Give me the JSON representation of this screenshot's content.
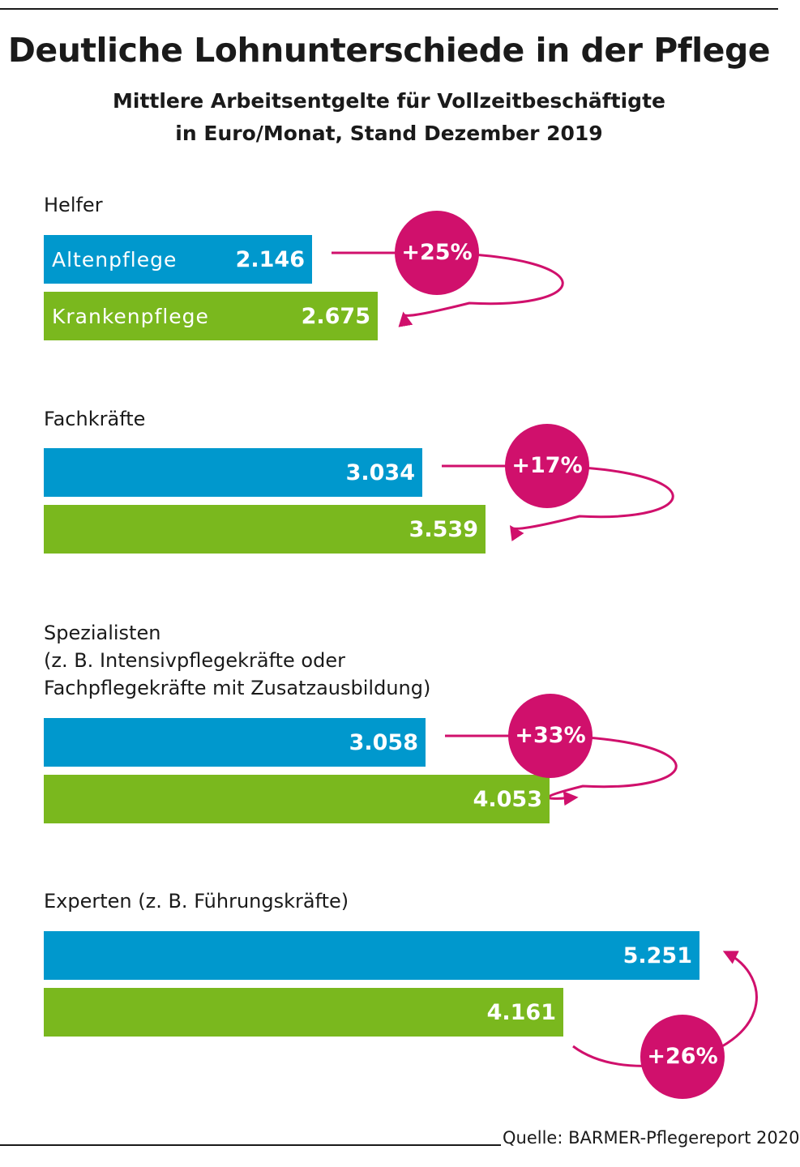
{
  "title": "Deutliche Lohnunterschiede in der Pflege",
  "subtitle_line1": "Mittlere Arbeitsentgelte für Vollzeitbeschäftigte",
  "subtitle_line2": "in Euro/Monat, Stand Dezember 2019",
  "source": "Quelle: BARMER-Pflegereport 2020",
  "chart_data": {
    "type": "bar",
    "orientation": "horizontal",
    "title": "Deutliche Lohnunterschiede in der Pflege",
    "unit": "Euro/Monat",
    "series": [
      {
        "name": "Altenpflege",
        "color": "#0098cd",
        "values": [
          2146,
          3034,
          3058,
          5251
        ]
      },
      {
        "name": "Krankenpflege",
        "color": "#7ab81e",
        "values": [
          2675,
          3539,
          4053,
          4161
        ]
      }
    ],
    "groups": [
      {
        "label_lines": [
          "Helfer"
        ],
        "altenpflege": {
          "label": "Altenpflege",
          "value": 2146,
          "display": "2.146"
        },
        "krankenpflege": {
          "label": "Krankenpflege",
          "value": 2675,
          "display": "2.675"
        },
        "difference": "+25%",
        "direction": "down"
      },
      {
        "label_lines": [
          "Fachkräfte"
        ],
        "altenpflege": {
          "label": "",
          "value": 3034,
          "display": "3.034"
        },
        "krankenpflege": {
          "label": "",
          "value": 3539,
          "display": "3.539"
        },
        "difference": "+17%",
        "direction": "down"
      },
      {
        "label_lines": [
          "Spezialisten",
          "(z. B. Intensivpflegekräfte oder",
          "Fachpflegekräfte mit Zusatzausbildung)"
        ],
        "altenpflege": {
          "label": "",
          "value": 3058,
          "display": "3.058"
        },
        "krankenpflege": {
          "label": "",
          "value": 4053,
          "display": "4.053"
        },
        "difference": "+33%",
        "direction": "down"
      },
      {
        "label_lines": [
          "Experten (z. B. Führungskräfte)"
        ],
        "altenpflege": {
          "label": "",
          "value": 5251,
          "display": "5.251"
        },
        "krankenpflege": {
          "label": "",
          "value": 4161,
          "display": "4.161"
        },
        "difference": "+26%",
        "direction": "up"
      }
    ]
  },
  "colors": {
    "altenpflege": "#0098cd",
    "krankenpflege": "#7ab81e",
    "accent": "#d0106c"
  }
}
